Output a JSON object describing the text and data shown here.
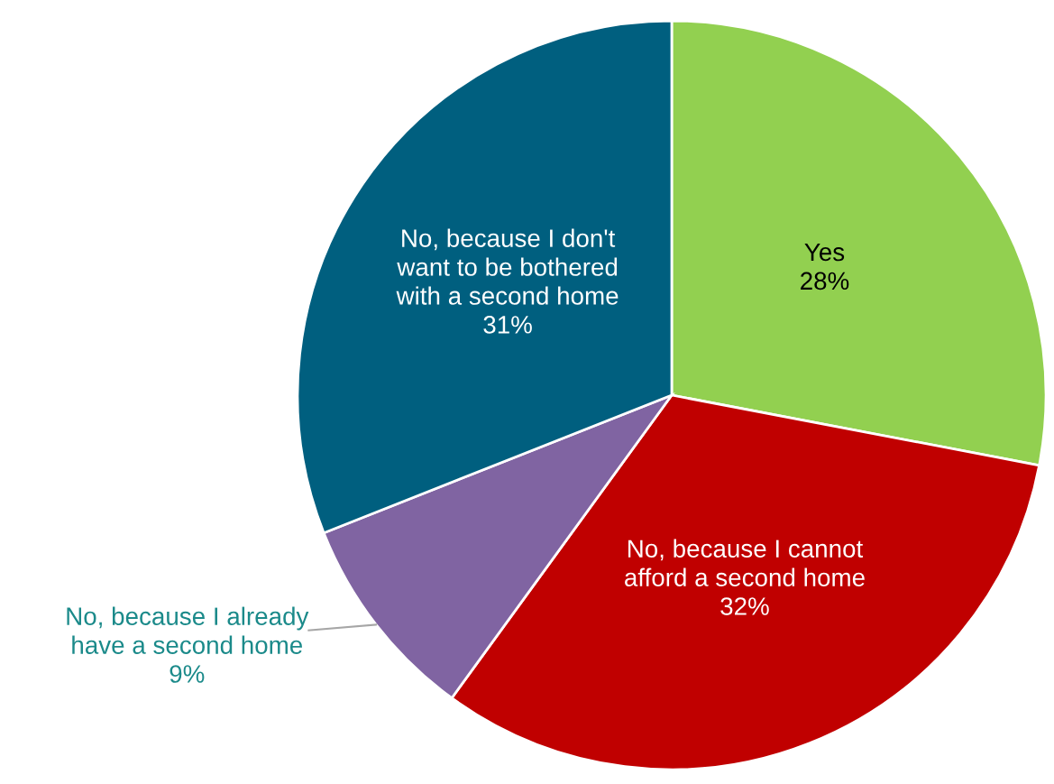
{
  "chart_data": {
    "type": "pie",
    "categories": [
      "Yes",
      "No, because I cannot afford a second home",
      "No, because I already have a second home",
      "No, because I don't want to be bothered with a second home"
    ],
    "values": [
      28,
      32,
      9,
      31
    ],
    "colors": [
      "#92d050",
      "#c00000",
      "#8064a2",
      "#005f7f"
    ],
    "value_labels": [
      "28%",
      "32%",
      "9%",
      "31%"
    ],
    "legend": false
  }
}
